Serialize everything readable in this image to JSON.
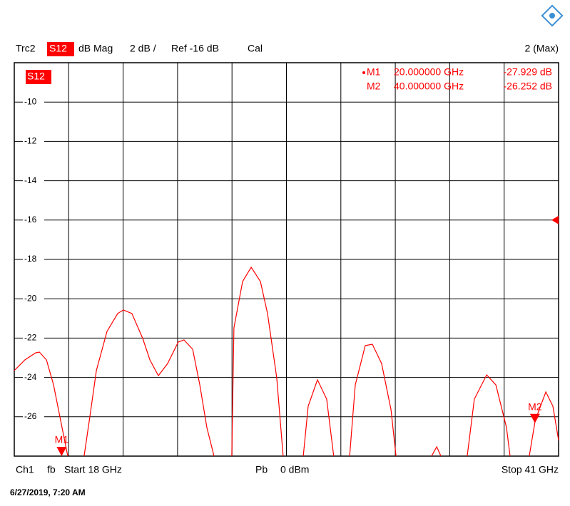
{
  "chart_data": {
    "type": "line",
    "header": {
      "trace": "Trc2",
      "param": "S12",
      "format": "dB Mag",
      "scale": "2 dB /",
      "ref": "Ref -16 dB",
      "cal": "Cal",
      "right": "2 (Max)"
    },
    "footer": {
      "channel": "Ch1",
      "mode": "fb",
      "start": "Start 18 GHz",
      "power_label": "Pb",
      "power": "0 dBm",
      "stop": "Stop 41 GHz"
    },
    "timestamp": "6/27/2019, 7:20 AM",
    "ref_level": -16,
    "xlim": [
      18,
      41
    ],
    "ylim": [
      -28,
      -8
    ],
    "yticks": [
      -10,
      -12,
      -14,
      -16,
      -18,
      -20,
      -22,
      -24,
      -26
    ],
    "grid": true,
    "x": [
      18.0,
      18.45,
      18.9,
      19.06,
      19.36,
      19.66,
      19.96,
      20.26,
      20.6,
      20.95,
      21.17,
      21.47,
      21.92,
      22.37,
      22.61,
      22.97,
      23.43,
      23.73,
      24.09,
      24.48,
      24.93,
      25.17,
      25.54,
      25.84,
      26.14,
      26.44,
      26.8,
      27.19,
      27.28,
      27.65,
      28.01,
      28.4,
      28.7,
      29.09,
      29.36,
      29.8,
      30.21,
      30.42,
      30.81,
      31.2,
      31.5,
      31.8,
      32.17,
      32.41,
      32.83,
      33.13,
      33.52,
      33.92,
      34.13,
      35.0,
      35.63,
      35.85,
      36.03,
      36.5,
      37.14,
      37.44,
      37.96,
      38.35,
      38.8,
      38.95,
      39.4,
      39.76,
      40.01,
      40.46,
      40.76,
      41.0
    ],
    "series": [
      {
        "name": "S12",
        "color": "#ff0000",
        "values": [
          -23.65,
          -23.11,
          -22.75,
          -22.71,
          -23.11,
          -24.38,
          -26.19,
          -28.0,
          null,
          -28.0,
          -26.19,
          -23.65,
          -21.66,
          -20.75,
          -20.57,
          -20.75,
          -22.02,
          -23.11,
          -23.91,
          -23.29,
          -22.2,
          -22.09,
          -22.57,
          -24.38,
          -26.55,
          -28.0,
          null,
          -28.0,
          -21.48,
          -19.12,
          -18.4,
          -19.12,
          -20.75,
          -24.01,
          -28.0,
          null,
          -28.0,
          -25.46,
          -24.12,
          -25.1,
          -28.0,
          null,
          -28.0,
          -24.38,
          -22.38,
          -22.31,
          -23.29,
          -25.64,
          -28.0,
          null,
          -28.0,
          -27.53,
          -28.0,
          null,
          -28.0,
          -25.1,
          -23.87,
          -24.38,
          -26.55,
          -28.0,
          null,
          -28.0,
          -26.19,
          -24.74,
          -25.46,
          -27.2
        ]
      }
    ],
    "markers": [
      {
        "name": "M1",
        "x": 20,
        "y": -27.929,
        "x_label": "20.000000 GHz",
        "y_label": "-27.929 dB"
      },
      {
        "name": "M2",
        "x": 40,
        "y": -26.252,
        "x_label": "40.000000 GHz",
        "y_label": "-26.252 dB"
      }
    ]
  }
}
